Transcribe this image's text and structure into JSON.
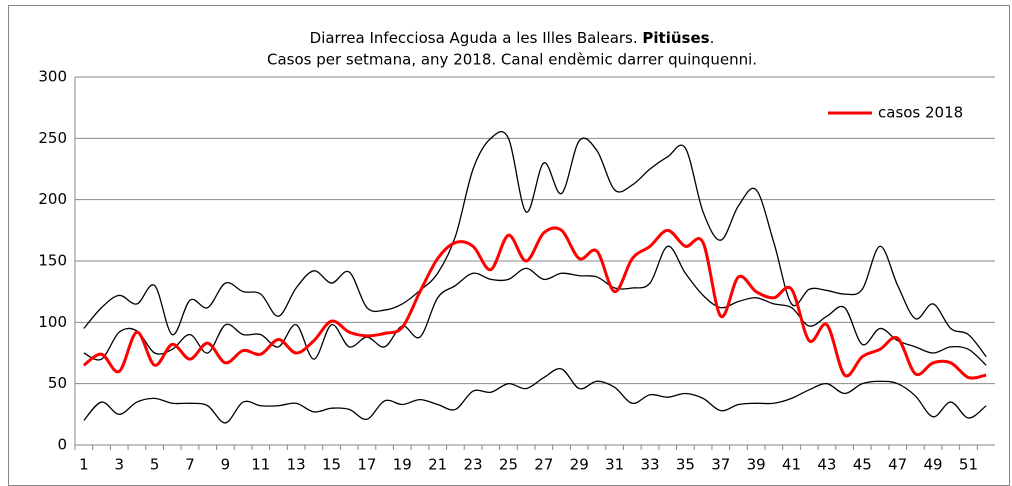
{
  "chart_data": {
    "type": "line",
    "title": "Diarrea Infecciosa Aguda  a  les Illes Balears.",
    "title_bold": "Pitiüses",
    "title_end": ".",
    "subtitle": "Casos per setmana, any 2018.  Canal endèmic darrer quinquenni.",
    "categories": [
      "1",
      null,
      "3",
      null,
      "5",
      null,
      "7",
      null,
      "9",
      null,
      "11",
      null,
      "13",
      null,
      "15",
      null,
      "17",
      null,
      "19",
      null,
      "21",
      null,
      "23",
      null,
      "25",
      null,
      "27",
      null,
      "29",
      null,
      "31",
      null,
      "33",
      null,
      "35",
      null,
      "37",
      null,
      "39",
      null,
      "41",
      null,
      "43",
      null,
      "45",
      null,
      "47",
      null,
      "49",
      null,
      "51",
      null
    ],
    "ylim": [
      0,
      300
    ],
    "yticks": [
      0,
      50,
      100,
      150,
      200,
      250,
      300
    ],
    "grid": true,
    "legend": "top-right",
    "series": [
      {
        "name": "casos 2018",
        "color": "#ff0000",
        "width": 3,
        "values": [
          65,
          74,
          60,
          92,
          65,
          82,
          70,
          83,
          67,
          77,
          74,
          86,
          75,
          85,
          101,
          92,
          89,
          91,
          96,
          125,
          152,
          165,
          162,
          143,
          171,
          150,
          173,
          175,
          152,
          158,
          125,
          152,
          162,
          175,
          162,
          165,
          105,
          137,
          125,
          120,
          127,
          85,
          98,
          57,
          72,
          78,
          87,
          58,
          67,
          67,
          55,
          57
        ]
      },
      {
        "color": "#000000",
        "width": 1.3,
        "values": [
          95,
          112,
          122,
          115,
          130,
          90,
          118,
          112,
          132,
          125,
          123,
          105,
          128,
          142,
          132,
          141,
          112,
          110,
          115,
          126,
          140,
          170,
          225,
          250,
          250,
          190,
          230,
          205,
          248,
          240,
          208,
          212,
          225,
          235,
          242,
          190,
          167,
          195,
          208,
          165,
          115,
          127,
          126,
          123,
          127,
          162,
          130,
          103,
          115,
          95,
          90,
          72
        ]
      },
      {
        "color": "#000000",
        "width": 1.3,
        "values": [
          75,
          70,
          92,
          93,
          75,
          78,
          90,
          75,
          98,
          90,
          90,
          80,
          98,
          70,
          98,
          80,
          88,
          80,
          97,
          88,
          120,
          130,
          140,
          135,
          135,
          144,
          135,
          140,
          138,
          137,
          128,
          128,
          132,
          162,
          140,
          122,
          112,
          117,
          120,
          115,
          112,
          97,
          105,
          112,
          82,
          95,
          85,
          80,
          75,
          80,
          78,
          65
        ]
      },
      {
        "color": "#000000",
        "width": 1.3,
        "values": [
          20,
          35,
          25,
          35,
          38,
          34,
          34,
          32,
          18,
          35,
          32,
          32,
          34,
          27,
          30,
          29,
          21,
          36,
          33,
          37,
          33,
          29,
          44,
          43,
          50,
          46,
          55,
          62,
          46,
          52,
          47,
          34,
          41,
          39,
          42,
          38,
          28,
          33,
          34,
          34,
          38,
          45,
          50,
          42,
          50,
          52,
          50,
          40,
          23,
          35,
          22,
          32
        ]
      }
    ]
  }
}
